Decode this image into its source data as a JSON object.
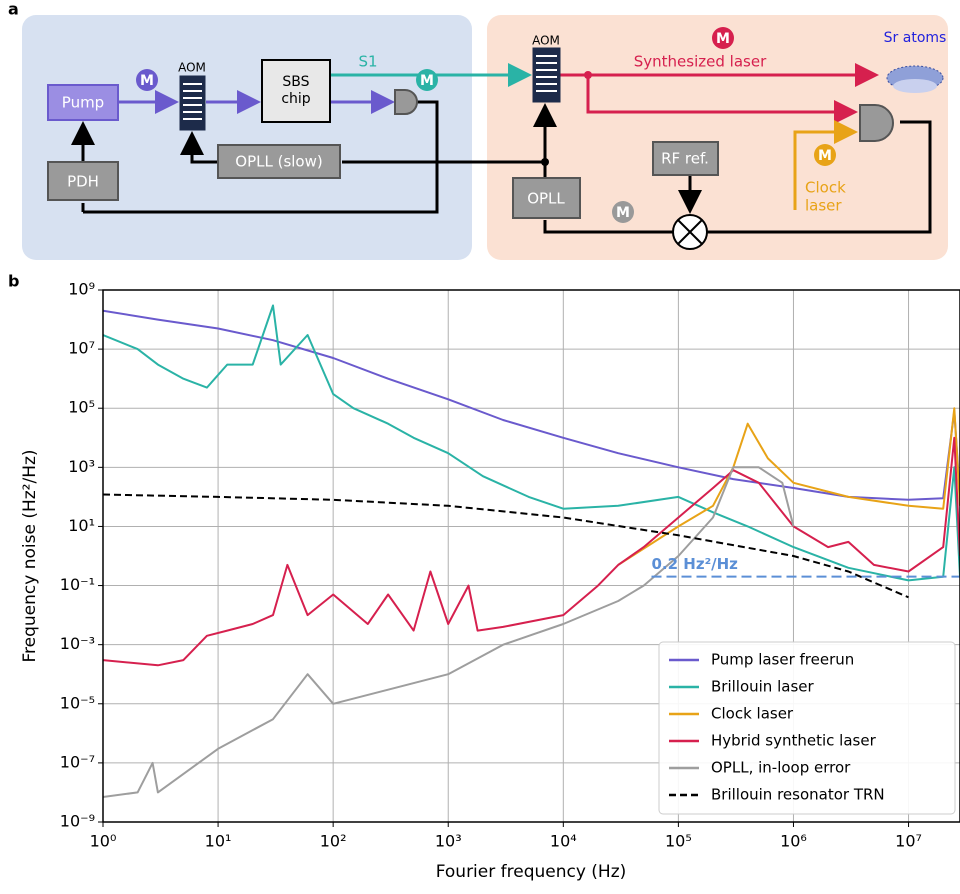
{
  "diagram": {
    "panel_label": "a",
    "left": {
      "pump": "Pump",
      "aom": "AOM",
      "sbs": [
        "SBS",
        "chip"
      ],
      "s1": "S1",
      "opll_slow": "OPLL (slow)",
      "pdh": "PDH",
      "m_pump": "M",
      "m_s1": "M"
    },
    "right": {
      "aom": "AOM",
      "synth": "Synthesized laser",
      "m_synth": "M",
      "sr": "Sr atoms",
      "rf": "RF ref.",
      "opll": "OPLL",
      "m_opll": "M",
      "clock": [
        "Clock",
        "laser"
      ],
      "m_clock": "M"
    }
  },
  "chart_data": {
    "type": "line",
    "panel_label": "b",
    "xlabel": "Fourier frequency (Hz)",
    "ylabel": "Frequency noise (Hz²/Hz)",
    "xscale": "log",
    "yscale": "log",
    "grid": true,
    "legend": "lower right",
    "xlim": [
      1,
      28000000
    ],
    "ylim": [
      1e-09,
      1000000000.0
    ],
    "xticks": [
      {
        "value": 1,
        "label": "10⁰"
      },
      {
        "value": 10,
        "label": "10¹"
      },
      {
        "value": 100,
        "label": "10²"
      },
      {
        "value": 1000,
        "label": "10³"
      },
      {
        "value": 10000,
        "label": "10⁴"
      },
      {
        "value": 100000,
        "label": "10⁵"
      },
      {
        "value": 1000000,
        "label": "10⁶"
      },
      {
        "value": 10000000,
        "label": "10⁷"
      }
    ],
    "yticks": [
      {
        "value": 1e-09,
        "label": "10⁻⁹"
      },
      {
        "value": 1e-07,
        "label": "10⁻⁷"
      },
      {
        "value": 1e-05,
        "label": "10⁻⁵"
      },
      {
        "value": 0.001,
        "label": "10⁻³"
      },
      {
        "value": 0.1,
        "label": "10⁻¹"
      },
      {
        "value": 10,
        "label": "10¹"
      },
      {
        "value": 1000,
        "label": "10³"
      },
      {
        "value": 100000,
        "label": "10⁵"
      },
      {
        "value": 10000000,
        "label": "10⁷"
      },
      {
        "value": 1000000000,
        "label": "10⁹"
      }
    ],
    "series": [
      {
        "name": "Pump laser freerun",
        "color": "#6a5acd",
        "linestyle": "solid",
        "x": [
          1,
          3,
          10,
          30,
          100,
          300,
          1000,
          3000,
          10000,
          30000,
          100000,
          300000,
          1000000,
          3000000,
          10000000,
          20000000,
          25000000,
          28000000
        ],
        "values": [
          200000000,
          100000000,
          50000000,
          20000000,
          5000000,
          1000000,
          200000,
          40000,
          10000,
          3000,
          1000,
          400,
          200,
          100,
          80,
          90,
          80000,
          100
        ]
      },
      {
        "name": "Brillouin laser",
        "color": "#2ab3a6",
        "linestyle": "solid",
        "x": [
          1,
          2,
          3,
          5,
          8,
          12,
          20,
          30,
          35,
          60,
          100,
          150,
          300,
          500,
          1000,
          2000,
          5000,
          10000,
          30000,
          100000,
          200000,
          400000,
          1000000,
          3000000,
          10000000,
          20000000,
          25000000,
          28000000
        ],
        "values": [
          30000000,
          10000000,
          3000000,
          1000000,
          500000,
          3000000,
          3000000,
          300000000,
          3000000,
          30000000,
          300000,
          100000,
          30000,
          10000,
          3000,
          500,
          100,
          40,
          50,
          100,
          30,
          10,
          2,
          0.4,
          0.15,
          0.2,
          1000,
          0.2
        ]
      },
      {
        "name": "Clock laser",
        "color": "#e8a317",
        "linestyle": "solid",
        "x": [
          30000,
          100000,
          200000,
          300000,
          400000,
          600000,
          1000000,
          3000000,
          10000000,
          20000000,
          25000000,
          28000000
        ],
        "values": [
          0.5,
          10,
          50,
          1000,
          30000,
          2000,
          300,
          100,
          50,
          40,
          100000,
          50
        ]
      },
      {
        "name": "Hybrid synthetic laser",
        "color": "#d6204e",
        "linestyle": "solid",
        "x": [
          1,
          3,
          5,
          8,
          12,
          20,
          30,
          40,
          60,
          100,
          200,
          300,
          500,
          700,
          1000,
          1500,
          1800,
          3000,
          10000,
          20000,
          30000,
          50000,
          100000,
          200000,
          300000,
          500000,
          1000000,
          2000000,
          3000000,
          5000000,
          10000000,
          20000000,
          25000000,
          28000000
        ],
        "values": [
          0.0003,
          0.0002,
          0.0003,
          0.002,
          0.003,
          0.005,
          0.01,
          0.5,
          0.01,
          0.05,
          0.005,
          0.05,
          0.003,
          0.3,
          0.005,
          0.1,
          0.003,
          0.004,
          0.01,
          0.1,
          0.5,
          2,
          20,
          200,
          800,
          300,
          10,
          2,
          3,
          0.5,
          0.3,
          2,
          10000,
          1
        ]
      },
      {
        "name": "OPLL, in-loop error",
        "color": "#9e9e9e",
        "linestyle": "solid",
        "x": [
          1,
          2,
          2.7,
          3,
          10,
          30,
          60,
          100,
          300,
          1000,
          3000,
          10000,
          30000,
          50000,
          100000,
          200000,
          300000,
          500000,
          800000,
          1000000
        ],
        "values": [
          7e-09,
          1e-08,
          1e-07,
          1e-08,
          3e-07,
          3e-06,
          0.0001,
          1e-05,
          3e-05,
          0.0001,
          0.001,
          0.005,
          0.03,
          0.1,
          1,
          20,
          1000,
          1000,
          300,
          10
        ]
      },
      {
        "name": "Brillouin resonator TRN",
        "color": "#000000",
        "linestyle": "dashed",
        "x": [
          1,
          10,
          100,
          1000,
          10000,
          100000,
          1000000,
          3000000,
          10000000
        ],
        "values": [
          120,
          100,
          80,
          50,
          20,
          5,
          1,
          0.3,
          0.04
        ]
      }
    ],
    "annotations": [
      {
        "text": "0.2 Hz²/Hz",
        "y": 0.2,
        "x": 130000,
        "color": "#5b8fd6"
      }
    ]
  }
}
